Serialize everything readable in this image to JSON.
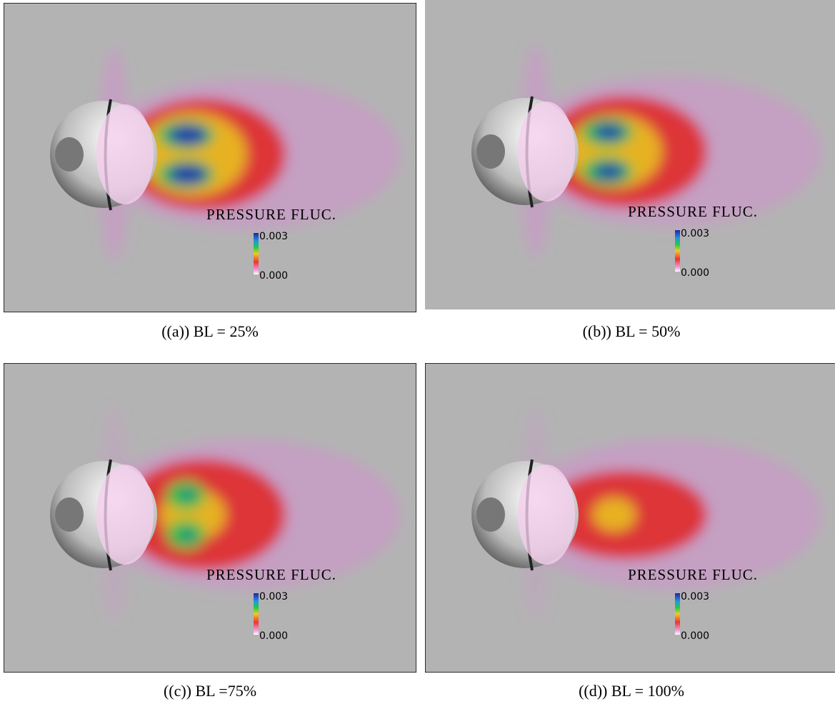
{
  "panels": [
    {
      "caption": "((a)) BL = 25%",
      "legend_title": "PRESSURE FLUC.",
      "colorbar_max": "0.003",
      "colorbar_min": "0.000"
    },
    {
      "caption": "((b)) BL = 50%",
      "legend_title": "PRESSURE FLUC.",
      "colorbar_max": "0.003",
      "colorbar_min": "0.000"
    },
    {
      "caption": "((c)) BL =75%",
      "legend_title": "PRESSURE FLUC.",
      "colorbar_max": "0.003",
      "colorbar_min": "0.000"
    },
    {
      "caption": "((d)) BL = 100%",
      "legend_title": "PRESSURE FLUC.",
      "colorbar_max": "0.003",
      "colorbar_min": "0.000"
    }
  ]
}
